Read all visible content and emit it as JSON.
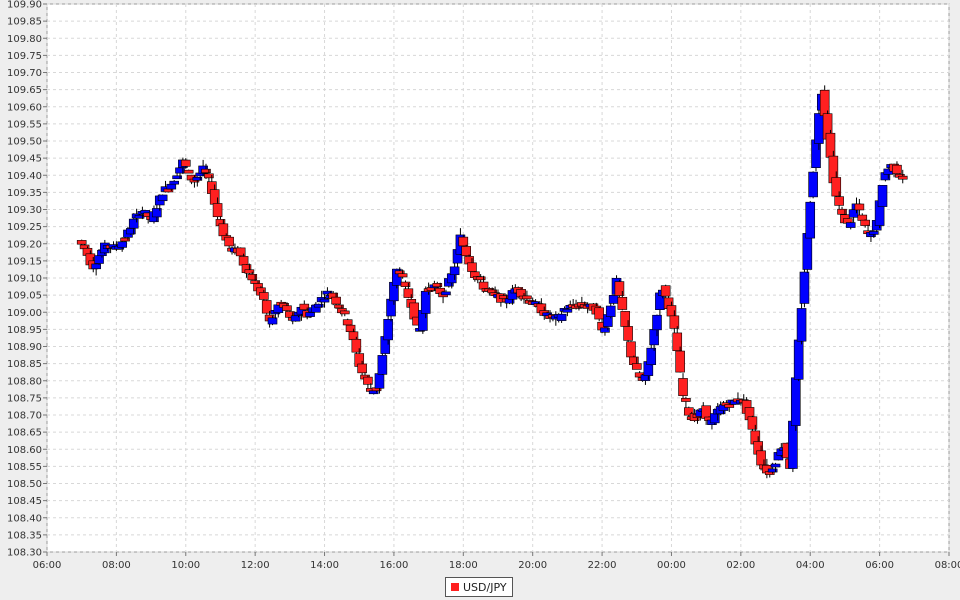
{
  "chart_data": {
    "type": "candlestick",
    "series": [
      {
        "name": "USD/JPY"
      }
    ],
    "title": "",
    "xlabel": "",
    "ylabel": "",
    "x_unit": "hours (elapsed from 06:00 of first day)",
    "xlim": [
      0,
      26
    ],
    "ylim": [
      108.3,
      109.9
    ],
    "grid": true,
    "legend_position": "bottom-center",
    "colors": {
      "up": "#0000ff",
      "down": "#ff2020",
      "outline": "#000000",
      "wick": "#000000"
    },
    "x_ticks": [
      "06:00",
      "08:00",
      "10:00",
      "12:00",
      "14:00",
      "16:00",
      "18:00",
      "20:00",
      "22:00",
      "00:00",
      "02:00",
      "04:00",
      "06:00",
      "08:00"
    ],
    "y_ticks": [
      "108.30",
      "108.35",
      "108.40",
      "108.45",
      "108.50",
      "108.55",
      "108.60",
      "108.65",
      "108.70",
      "108.75",
      "108.80",
      "108.85",
      "108.90",
      "108.95",
      "109.00",
      "109.05",
      "109.10",
      "109.15",
      "109.20",
      "109.25",
      "109.30",
      "109.35",
      "109.40",
      "109.45",
      "109.50",
      "109.55",
      "109.60",
      "109.65",
      "109.70",
      "109.75",
      "109.80",
      "109.85",
      "109.90"
    ],
    "price_path": [
      [
        1.0,
        109.21
      ],
      [
        1.2,
        109.18
      ],
      [
        1.4,
        109.13
      ],
      [
        1.6,
        109.17
      ],
      [
        1.8,
        109.2
      ],
      [
        2.0,
        109.19
      ],
      [
        2.2,
        109.2
      ],
      [
        2.4,
        109.23
      ],
      [
        2.6,
        109.27
      ],
      [
        2.8,
        109.3
      ],
      [
        3.1,
        109.27
      ],
      [
        3.4,
        109.35
      ],
      [
        3.7,
        109.38
      ],
      [
        4.0,
        109.44
      ],
      [
        4.3,
        109.38
      ],
      [
        4.6,
        109.42
      ],
      [
        4.8,
        109.37
      ],
      [
        5.0,
        109.28
      ],
      [
        5.2,
        109.22
      ],
      [
        5.4,
        109.18
      ],
      [
        5.6,
        109.18
      ],
      [
        5.8,
        109.13
      ],
      [
        6.0,
        109.1
      ],
      [
        6.3,
        109.04
      ],
      [
        6.5,
        108.97
      ],
      [
        6.8,
        109.03
      ],
      [
        7.0,
        109.0
      ],
      [
        7.2,
        108.97
      ],
      [
        7.4,
        109.02
      ],
      [
        7.6,
        108.99
      ],
      [
        7.9,
        109.03
      ],
      [
        8.2,
        109.06
      ],
      [
        8.5,
        109.02
      ],
      [
        8.8,
        108.96
      ],
      [
        9.1,
        108.84
      ],
      [
        9.4,
        108.77
      ],
      [
        9.6,
        108.78
      ],
      [
        9.8,
        108.9
      ],
      [
        10.0,
        109.04
      ],
      [
        10.2,
        109.14
      ],
      [
        10.4,
        109.07
      ],
      [
        10.6,
        109.02
      ],
      [
        10.8,
        108.93
      ],
      [
        11.0,
        109.06
      ],
      [
        11.2,
        109.08
      ],
      [
        11.5,
        109.05
      ],
      [
        11.8,
        109.12
      ],
      [
        12.0,
        109.22
      ],
      [
        12.2,
        109.16
      ],
      [
        12.4,
        109.11
      ],
      [
        12.7,
        109.07
      ],
      [
        13.0,
        109.05
      ],
      [
        13.3,
        109.03
      ],
      [
        13.6,
        109.07
      ],
      [
        13.9,
        109.04
      ],
      [
        14.2,
        109.02
      ],
      [
        14.5,
        108.99
      ],
      [
        14.8,
        108.98
      ],
      [
        15.0,
        109.01
      ],
      [
        15.3,
        109.02
      ],
      [
        15.6,
        109.02
      ],
      [
        15.9,
        109.01
      ],
      [
        16.1,
        108.94
      ],
      [
        16.3,
        109.01
      ],
      [
        16.5,
        109.09
      ],
      [
        16.7,
        108.98
      ],
      [
        16.9,
        108.88
      ],
      [
        17.1,
        108.82
      ],
      [
        17.3,
        108.79
      ],
      [
        17.5,
        108.9
      ],
      [
        17.7,
        109.02
      ],
      [
        17.8,
        109.08
      ],
      [
        18.0,
        109.02
      ],
      [
        18.2,
        108.93
      ],
      [
        18.4,
        108.76
      ],
      [
        18.6,
        108.7
      ],
      [
        18.8,
        108.69
      ],
      [
        19.0,
        108.72
      ],
      [
        19.2,
        108.67
      ],
      [
        19.4,
        108.71
      ],
      [
        19.6,
        108.73
      ],
      [
        19.9,
        108.74
      ],
      [
        20.1,
        108.75
      ],
      [
        20.3,
        108.7
      ],
      [
        20.5,
        108.62
      ],
      [
        20.7,
        108.55
      ],
      [
        20.9,
        108.53
      ],
      [
        21.1,
        108.57
      ],
      [
        21.3,
        108.62
      ],
      [
        21.5,
        108.55
      ],
      [
        21.7,
        108.85
      ],
      [
        21.9,
        109.1
      ],
      [
        22.1,
        109.35
      ],
      [
        22.3,
        109.55
      ],
      [
        22.4,
        109.66
      ],
      [
        22.6,
        109.5
      ],
      [
        22.8,
        109.35
      ],
      [
        23.0,
        109.28
      ],
      [
        23.2,
        109.25
      ],
      [
        23.4,
        109.32
      ],
      [
        23.6,
        109.26
      ],
      [
        23.8,
        109.22
      ],
      [
        24.0,
        109.26
      ],
      [
        24.2,
        109.4
      ],
      [
        24.4,
        109.43
      ],
      [
        24.6,
        109.41
      ],
      [
        24.7,
        109.4
      ]
    ]
  },
  "legend": {
    "label": "USD/JPY"
  }
}
